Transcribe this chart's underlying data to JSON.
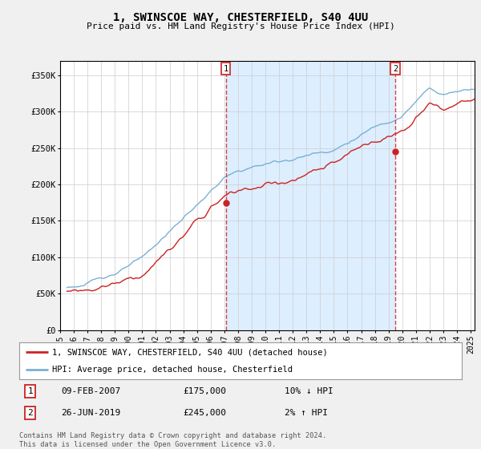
{
  "title": "1, SWINSCOE WAY, CHESTERFIELD, S40 4UU",
  "subtitle": "Price paid vs. HM Land Registry's House Price Index (HPI)",
  "ylabel_ticks": [
    "£0",
    "£50K",
    "£100K",
    "£150K",
    "£200K",
    "£250K",
    "£300K",
    "£350K"
  ],
  "ytick_values": [
    0,
    50000,
    100000,
    150000,
    200000,
    250000,
    300000,
    350000
  ],
  "ylim": [
    0,
    370000
  ],
  "xlim_start": 1995.5,
  "xlim_end": 2025.3,
  "line1_color": "#cc2222",
  "line2_color": "#7ab0d4",
  "vline_color": "#cc2222",
  "shade_color": "#ddeeff",
  "transaction1": {
    "date_x": 2007.1,
    "price": 175000,
    "label": "1",
    "date_str": "09-FEB-2007",
    "price_str": "£175,000",
    "note": "10% ↓ HPI"
  },
  "transaction2": {
    "date_x": 2019.5,
    "price": 245000,
    "label": "2",
    "date_str": "26-JUN-2019",
    "price_str": "£245,000",
    "note": "2% ↑ HPI"
  },
  "legend1_label": "1, SWINSCOE WAY, CHESTERFIELD, S40 4UU (detached house)",
  "legend2_label": "HPI: Average price, detached house, Chesterfield",
  "footer": "Contains HM Land Registry data © Crown copyright and database right 2024.\nThis data is licensed under the Open Government Licence v3.0.",
  "xtick_years": [
    1995,
    1996,
    1997,
    1998,
    1999,
    2000,
    2001,
    2002,
    2003,
    2004,
    2005,
    2006,
    2007,
    2008,
    2009,
    2010,
    2011,
    2012,
    2013,
    2014,
    2015,
    2016,
    2017,
    2018,
    2019,
    2020,
    2021,
    2022,
    2023,
    2024,
    2025
  ],
  "background_color": "#f0f0f0",
  "plot_bg_color": "#ffffff"
}
